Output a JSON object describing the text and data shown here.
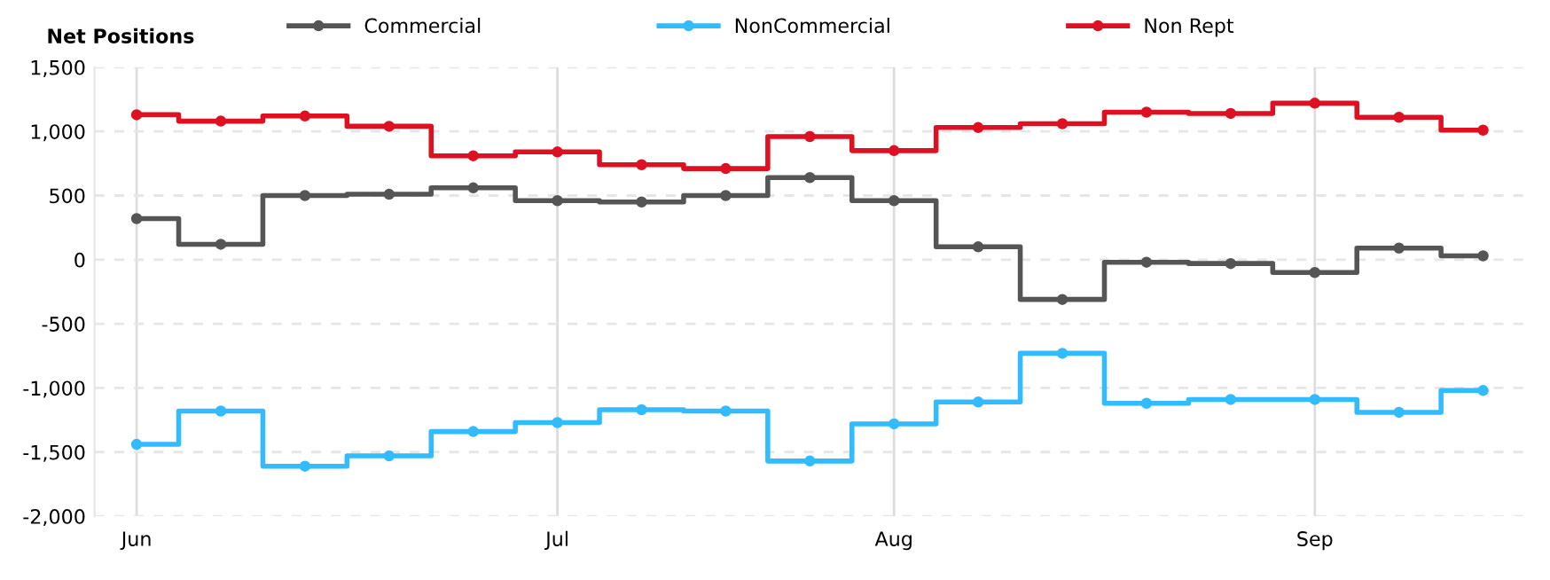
{
  "chart_data": {
    "type": "step",
    "title": "Net Positions",
    "categories": [
      "Jun",
      null,
      null,
      null,
      null,
      "Jul",
      null,
      null,
      null,
      "Aug",
      null,
      null,
      null,
      null,
      "Sep",
      null,
      null
    ],
    "series": [
      {
        "name": "Commercial",
        "color": "#555555",
        "values": [
          320,
          120,
          500,
          510,
          560,
          460,
          450,
          500,
          640,
          460,
          100,
          -310,
          -20,
          -30,
          -100,
          90,
          30
        ]
      },
      {
        "name": "NonCommercial",
        "color": "#33bbff",
        "values": [
          -1440,
          -1180,
          -1610,
          -1530,
          -1340,
          -1270,
          -1170,
          -1180,
          -1570,
          -1280,
          -1110,
          -730,
          -1120,
          -1090,
          -1090,
          -1190,
          -1020
        ]
      },
      {
        "name": "Non Rept",
        "color": "#dd1122",
        "values": [
          1130,
          1080,
          1120,
          1040,
          810,
          840,
          740,
          710,
          960,
          850,
          1030,
          1060,
          1150,
          1140,
          1220,
          1110,
          1010
        ]
      }
    ],
    "ylim": [
      -2000,
      1500
    ],
    "yticks": [
      {
        "value": -2000,
        "label": "-2,000"
      },
      {
        "value": -1500,
        "label": "-1,500"
      },
      {
        "value": -1000,
        "label": "-1,000"
      },
      {
        "value": -500,
        "label": "-500"
      },
      0,
      500,
      {
        "value": 1000,
        "label": "1,000"
      },
      {
        "value": 1500,
        "label": "1,500"
      }
    ],
    "grid": true,
    "legend": "top",
    "marker": "circle",
    "line_style": "solid"
  }
}
